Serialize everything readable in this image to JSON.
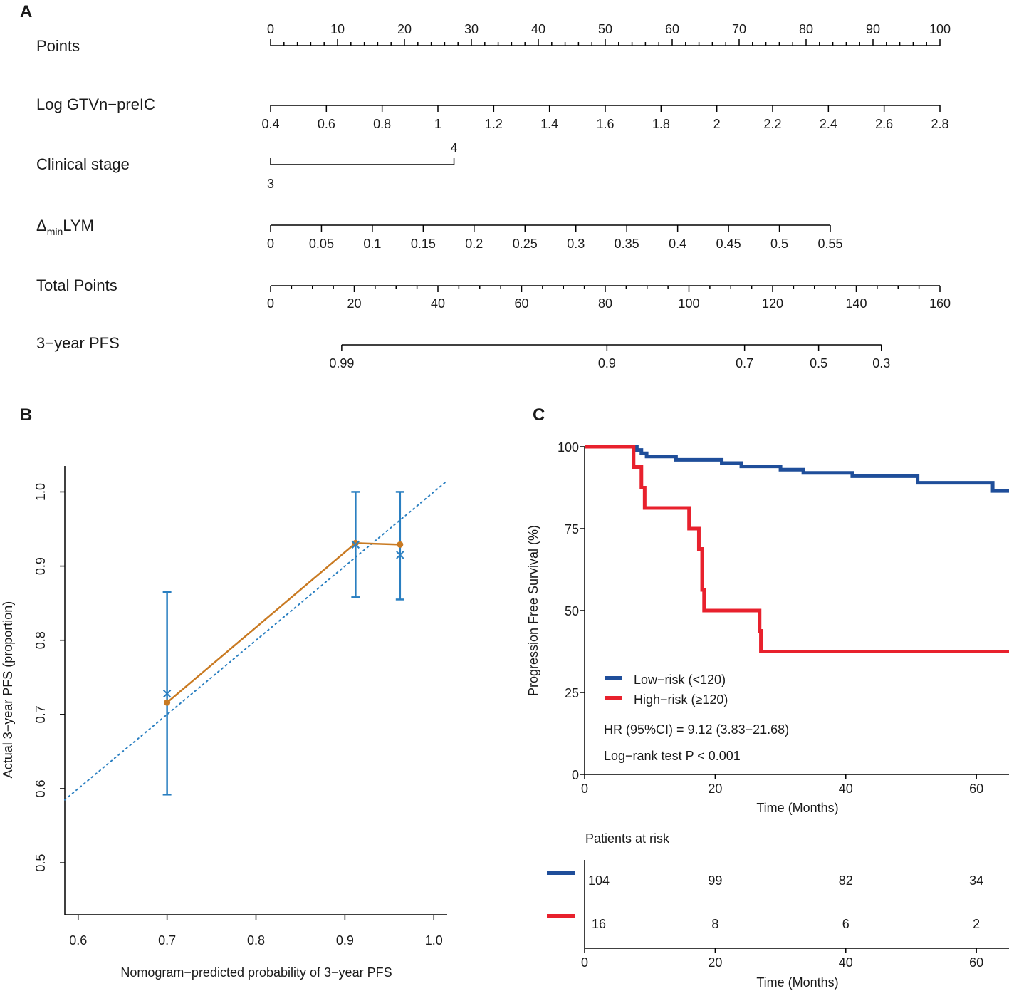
{
  "panels": {
    "a": "A",
    "b": "B",
    "c": "C"
  },
  "chart_data": [
    {
      "type": "nomogram",
      "panel": "A",
      "scales": [
        {
          "label": "Points",
          "min": 0,
          "max": 100,
          "major": 10,
          "ticks": [
            "0",
            "10",
            "20",
            "30",
            "40",
            "50",
            "60",
            "70",
            "80",
            "90",
            "100"
          ]
        },
        {
          "label": "Log GTVn−preIC",
          "min": 0.4,
          "max": 2.8,
          "major": 0.2,
          "ticks": [
            "0.4",
            "0.6",
            "0.8",
            "1",
            "1.2",
            "1.4",
            "1.6",
            "1.8",
            "2",
            "2.2",
            "2.4",
            "2.6",
            "2.8"
          ]
        },
        {
          "label": "Clinical stage",
          "values": [
            "3",
            "4"
          ],
          "points": [
            0,
            27.4
          ]
        },
        {
          "label_main": "Δ",
          "label_sub": "min",
          "label_rest": "LYM",
          "min": 0,
          "max": 0.55,
          "major": 0.05,
          "ticks": [
            "0",
            "0.05",
            "0.1",
            "0.15",
            "0.2",
            "0.25",
            "0.3",
            "0.35",
            "0.4",
            "0.45",
            "0.5",
            "0.55"
          ]
        },
        {
          "label": "Total Points",
          "min": 0,
          "max": 160,
          "major": 20,
          "ticks": [
            "0",
            "20",
            "40",
            "60",
            "80",
            "100",
            "120",
            "140",
            "160"
          ]
        },
        {
          "label": "3−year PFS",
          "tick_values": [
            0.99,
            0.9,
            0.7,
            0.5,
            0.3
          ],
          "ticks": [
            "0.99",
            "0.9",
            "0.7",
            "0.5",
            "0.3"
          ],
          "total_points": [
            17,
            80.4,
            113.3,
            131,
            146
          ]
        }
      ]
    },
    {
      "type": "line",
      "panel": "B",
      "xlabel": "Nomogram−predicted probability of 3−year PFS",
      "ylabel": "Actual 3−year PFS (proportion)",
      "xlim": [
        0.585,
        1.015
      ],
      "ylim": [
        0.43,
        1.035
      ],
      "xticks": [
        "0.6",
        "0.7",
        "0.8",
        "0.9",
        "1.0"
      ],
      "yticks": [
        "0.5",
        "0.6",
        "0.7",
        "0.8",
        "0.9",
        "1.0"
      ],
      "ideal_line": [
        [
          0.585,
          0.585
        ],
        [
          1.015,
          1.015
        ]
      ],
      "apparent": {
        "x": [
          0.7,
          0.912,
          0.962
        ],
        "y": [
          0.716,
          0.931,
          0.929
        ]
      },
      "bias_corrected": {
        "x": [
          0.7,
          0.912,
          0.962
        ],
        "y": [
          0.728,
          0.929,
          0.915
        ]
      },
      "error_bars": [
        {
          "x": 0.7,
          "lo": 0.592,
          "hi": 0.865
        },
        {
          "x": 0.912,
          "lo": 0.858,
          "hi": 1.0
        },
        {
          "x": 0.962,
          "lo": 0.855,
          "hi": 1.0
        }
      ]
    },
    {
      "type": "step",
      "panel": "C",
      "xlabel": "Time (Months)",
      "ylabel": "Progression Free Survival (%)",
      "xlim": [
        0,
        65
      ],
      "ylim": [
        0,
        100
      ],
      "xticks": [
        "0",
        "20",
        "40",
        "60"
      ],
      "yticks": [
        "0",
        "25",
        "50",
        "75",
        "100"
      ],
      "series": [
        {
          "name": "Low−risk (<120)",
          "color": "#1f4e9a",
          "x": [
            0,
            8,
            8.7,
            9.5,
            14,
            21,
            24,
            30,
            33.5,
            41,
            51,
            62.5,
            65
          ],
          "y": [
            100,
            99,
            98,
            97,
            96,
            95,
            94,
            93,
            92,
            91,
            89,
            86.5,
            86.5
          ]
        },
        {
          "name": "High−risk (≥120)",
          "color": "#e8212d",
          "x": [
            0,
            7.5,
            8.7,
            9.2,
            16,
            17.5,
            18,
            18.3,
            26.8,
            27,
            65
          ],
          "y": [
            100,
            93.8,
            87.5,
            81.3,
            75,
            68.8,
            56.3,
            50,
            43.8,
            37.5,
            37.5
          ]
        }
      ],
      "annotations": [
        "HR (95%CI) = 9.12 (3.83−21.68)",
        "Log−rank test P < 0.001"
      ],
      "risk_table": {
        "title": "Patients at risk",
        "times": [
          0,
          20,
          40,
          60
        ],
        "rows": [
          {
            "color": "#1f4e9a",
            "counts": [
              "104",
              "99",
              "82",
              "34"
            ]
          },
          {
            "color": "#e8212d",
            "counts": [
              "16",
              "8",
              "6",
              "2"
            ]
          }
        ],
        "xlabel": "Time (Months)",
        "xticks": [
          "0",
          "20",
          "40",
          "60"
        ]
      }
    }
  ]
}
